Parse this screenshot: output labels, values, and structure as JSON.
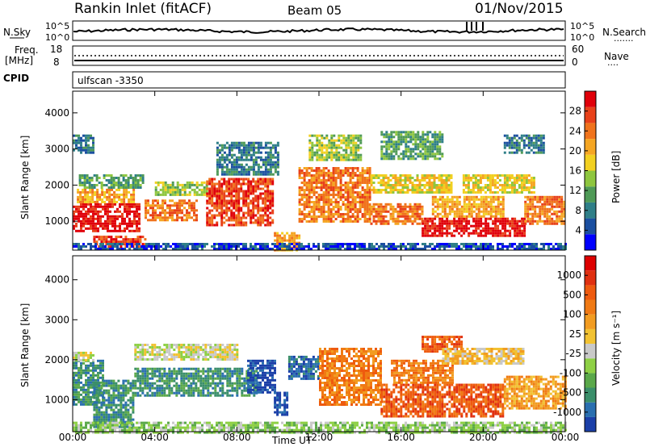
{
  "header": {
    "station": "Rankin Inlet (fitACF)",
    "beam": "Beam 05",
    "date": "01/Nov/2015"
  },
  "top_panels": {
    "nsky_label": "N.Sky",
    "nsearch_label": "N.Search",
    "nsearch_dots": "·······",
    "sky_ticks": [
      "10^5",
      "10^0"
    ],
    "freq_label": "Freq.",
    "freq_unit": "[MHz]",
    "freq_ticks": [
      "18",
      "8"
    ],
    "nave_label": "Nave",
    "nave_dots": "····",
    "nave_ticks": [
      "60",
      "0"
    ],
    "cpid_label": "CPID",
    "cpid_value": "ulfscan -3350"
  },
  "chart_data": [
    {
      "type": "heatmap",
      "panel": "power",
      "ylabel": "Slant Range [km]",
      "yticks": [
        "1000",
        "2000",
        "3000",
        "4000"
      ],
      "ylim": [
        200,
        4600
      ],
      "xlim": [
        0,
        24
      ],
      "colorbar_label": "Power [dB]",
      "colorbar_ticks": [
        "4",
        "8",
        "12",
        "16",
        "20",
        "24",
        "28"
      ],
      "colorbar_colors": [
        "#0000ff",
        "#1b4fa0",
        "#2f7f88",
        "#4f9a57",
        "#8ec63f",
        "#f2d021",
        "#f5a623",
        "#f0731c",
        "#e8411a",
        "#e0000a"
      ],
      "bands": [
        {
          "t0": 0.0,
          "t1": 3.2,
          "r0": 700,
          "r1": 1500,
          "level": 9
        },
        {
          "t0": 0.2,
          "t1": 3.0,
          "r0": 1500,
          "r1": 1900,
          "level": 6
        },
        {
          "t0": 0.3,
          "t1": 3.4,
          "r0": 1900,
          "r1": 2300,
          "level": 3
        },
        {
          "t0": 0.0,
          "t1": 1.0,
          "r0": 2900,
          "r1": 3400,
          "level": 2
        },
        {
          "t0": 1.0,
          "t1": 3.5,
          "r0": 300,
          "r1": 600,
          "level": 8
        },
        {
          "t0": 3.5,
          "t1": 6.0,
          "r0": 1000,
          "r1": 1600,
          "level": 7
        },
        {
          "t0": 4.0,
          "t1": 6.5,
          "r0": 1700,
          "r1": 2100,
          "level": 4
        },
        {
          "t0": 6.5,
          "t1": 9.8,
          "r0": 900,
          "r1": 2200,
          "level": 8
        },
        {
          "t0": 7.0,
          "t1": 10.0,
          "r0": 2300,
          "r1": 3200,
          "level": 2
        },
        {
          "t0": 9.8,
          "t1": 11.0,
          "r0": 200,
          "r1": 700,
          "level": 6
        },
        {
          "t0": 11.0,
          "t1": 14.5,
          "r0": 1000,
          "r1": 2500,
          "level": 7
        },
        {
          "t0": 11.5,
          "t1": 14.0,
          "r0": 2700,
          "r1": 3400,
          "level": 4
        },
        {
          "t0": 14.5,
          "t1": 17.0,
          "r0": 900,
          "r1": 1500,
          "level": 7
        },
        {
          "t0": 14.5,
          "t1": 18.5,
          "r0": 1800,
          "r1": 2300,
          "level": 5
        },
        {
          "t0": 15.0,
          "t1": 18.0,
          "r0": 2700,
          "r1": 3500,
          "level": 3
        },
        {
          "t0": 17.0,
          "t1": 22.0,
          "r0": 600,
          "r1": 1100,
          "level": 9
        },
        {
          "t0": 17.5,
          "t1": 21.0,
          "r0": 1100,
          "r1": 1700,
          "level": 6
        },
        {
          "t0": 19.0,
          "t1": 22.5,
          "r0": 1800,
          "r1": 2300,
          "level": 5
        },
        {
          "t0": 21.0,
          "t1": 23.0,
          "r0": 2900,
          "r1": 3400,
          "level": 2
        },
        {
          "t0": 22.0,
          "t1": 24.0,
          "r0": 900,
          "r1": 1700,
          "level": 7
        },
        {
          "t0": 0.0,
          "t1": 24.0,
          "r0": 200,
          "r1": 400,
          "level": 1
        }
      ]
    },
    {
      "type": "heatmap",
      "panel": "velocity",
      "ylabel": "Slant Range [km]",
      "yticks": [
        "1000",
        "2000",
        "3000",
        "4000"
      ],
      "ylim": [
        200,
        4600
      ],
      "xlim": [
        0,
        24
      ],
      "xticks": [
        "00:00",
        "04:00",
        "08:00",
        "12:00",
        "16:00",
        "20:00",
        "00:00"
      ],
      "xlabel": "Time UT",
      "colorbar_label": "Velocity [m s⁻¹]",
      "colorbar_ticks": [
        "1000",
        "500",
        "100",
        "25",
        "-25",
        "-100",
        "-500",
        "-1000"
      ],
      "colorbar_colors": [
        "#1b3fa8",
        "#2a6fb0",
        "#3a8e6a",
        "#5aa84a",
        "#8ed045",
        "#c9c9c9",
        "#f2c232",
        "#f29c21",
        "#f07a14",
        "#ee5a0f",
        "#e03010",
        "#dd0000"
      ],
      "bands": [
        {
          "t0": 0.0,
          "t1": 1.5,
          "r0": 900,
          "r1": 2000,
          "level": 2
        },
        {
          "t0": 0.0,
          "t1": 1.0,
          "r0": 2000,
          "r1": 2200,
          "level": 5
        },
        {
          "t0": 1.0,
          "t1": 3.0,
          "r0": 300,
          "r1": 1500,
          "level": 2
        },
        {
          "t0": 3.0,
          "t1": 9.0,
          "r0": 1100,
          "r1": 1800,
          "level": 2
        },
        {
          "t0": 3.0,
          "t1": 8.0,
          "r0": 2000,
          "r1": 2400,
          "level": 5
        },
        {
          "t0": 8.5,
          "t1": 9.8,
          "r0": 1200,
          "r1": 2000,
          "level": 0
        },
        {
          "t0": 9.8,
          "t1": 10.4,
          "r0": 600,
          "r1": 1200,
          "level": 0
        },
        {
          "t0": 10.5,
          "t1": 12.0,
          "r0": 1500,
          "r1": 2100,
          "level": 1
        },
        {
          "t0": 12.0,
          "t1": 15.0,
          "r0": 900,
          "r1": 2300,
          "level": 8
        },
        {
          "t0": 15.0,
          "t1": 21.0,
          "r0": 600,
          "r1": 1400,
          "level": 9
        },
        {
          "t0": 15.5,
          "t1": 18.5,
          "r0": 1400,
          "r1": 2000,
          "level": 8
        },
        {
          "t0": 17.0,
          "t1": 19.0,
          "r0": 2200,
          "r1": 2600,
          "level": 9
        },
        {
          "t0": 18.0,
          "t1": 22.0,
          "r0": 1900,
          "r1": 2300,
          "level": 6
        },
        {
          "t0": 21.0,
          "t1": 24.0,
          "r0": 800,
          "r1": 1600,
          "level": 7
        },
        {
          "t0": 0.0,
          "t1": 24.0,
          "r0": 200,
          "r1": 450,
          "level": 4
        }
      ]
    }
  ]
}
